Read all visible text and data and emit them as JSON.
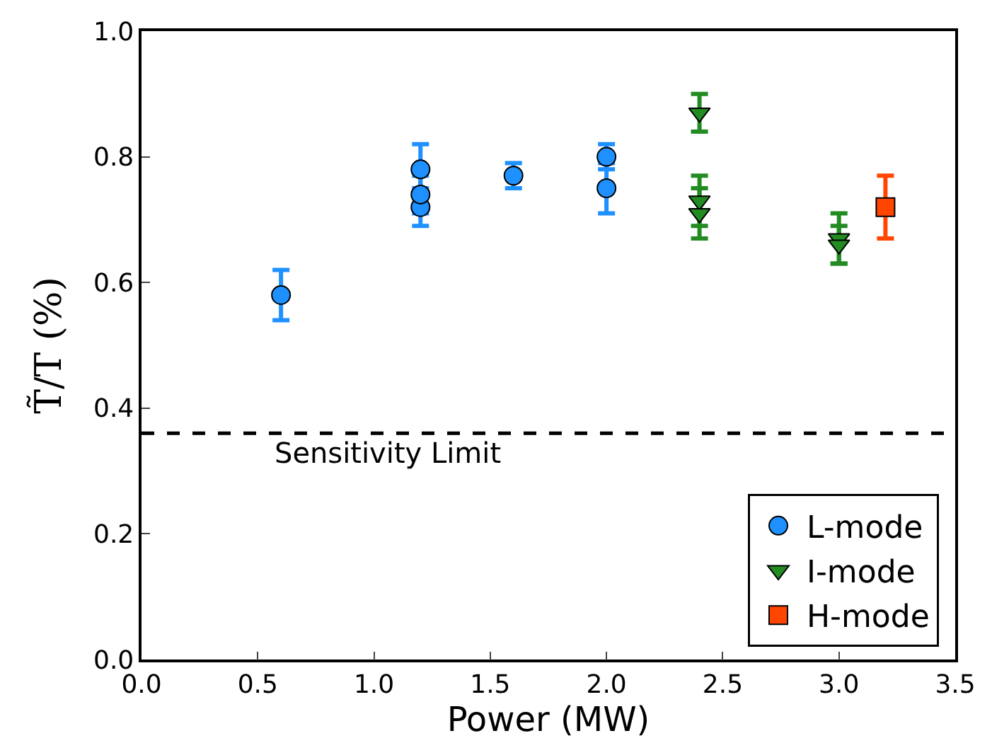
{
  "chart_data": {
    "type": "scatter",
    "xlabel": "Power (MW)",
    "ylabel": "T̃/T (%)",
    "xlim": [
      0.0,
      3.5
    ],
    "xticks": [
      {
        "value": 0,
        "label": "0.0"
      },
      0.5,
      {
        "value": 1,
        "label": "1.0"
      },
      1.5,
      {
        "value": 2,
        "label": "2.0"
      },
      2.5,
      {
        "value": 3,
        "label": "3.0"
      },
      3.5
    ],
    "ylim": [
      0.0,
      1.0
    ],
    "yticks": [
      {
        "value": 0,
        "label": "0.0"
      },
      0.2,
      0.4,
      0.6,
      0.8,
      {
        "value": 1,
        "label": "1.0"
      }
    ],
    "legend": "bottom right",
    "series": [
      {
        "name": "L-mode",
        "color": "#1e90ff",
        "marker": "circle",
        "x": [
          0.6,
          1.2,
          1.2,
          1.2,
          1.6,
          2.0,
          2.0
        ],
        "values": [
          0.58,
          0.72,
          0.74,
          0.78,
          0.77,
          0.75,
          0.8
        ],
        "errors": [
          0.04,
          0.03,
          0.03,
          0.04,
          0.02,
          0.04,
          0.02
        ]
      },
      {
        "name": "I-mode",
        "color": "#228b22",
        "marker": "triangle",
        "x": [
          2.4,
          2.4,
          2.4,
          3.0,
          3.0
        ],
        "values": [
          0.87,
          0.73,
          0.71,
          0.67,
          0.66
        ],
        "errors": [
          0.03,
          0.04,
          0.04,
          0.04,
          0.03
        ]
      },
      {
        "name": "H-mode",
        "color": "#ff4500",
        "marker": "square",
        "x": [
          3.2
        ],
        "values": [
          0.72
        ],
        "errors": [
          0.05
        ]
      }
    ],
    "ref_lines": [
      {
        "axis": "y",
        "value": 0.36,
        "label": "Sensitivity Limit",
        "color": "#000000",
        "line_style": "dashed"
      }
    ]
  }
}
